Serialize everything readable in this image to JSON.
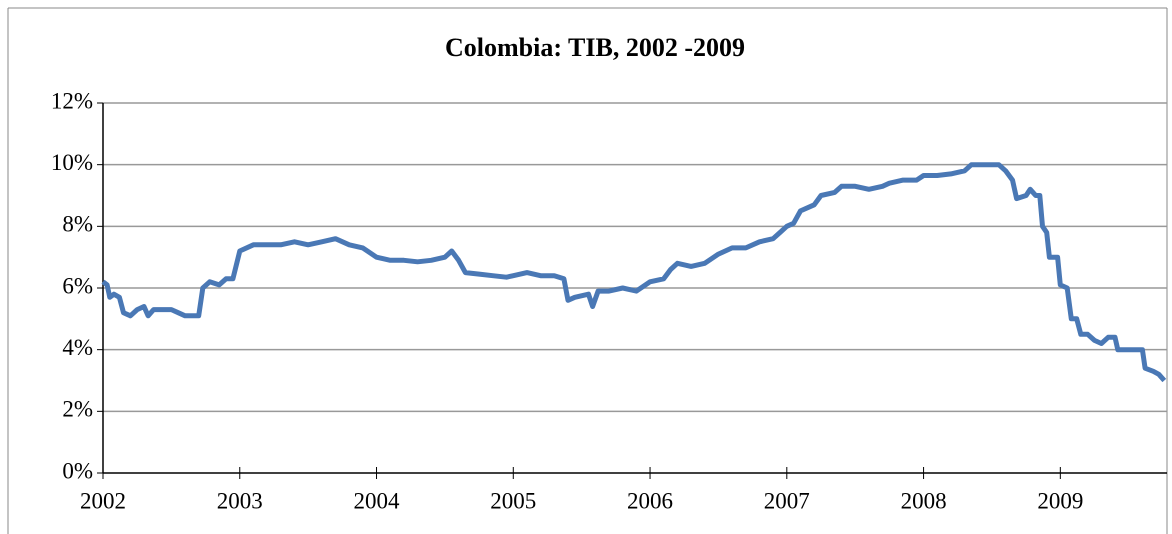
{
  "chart_data": {
    "type": "line",
    "title": "Colombia: TIB, 2002 -2009",
    "x": [
      2002.0,
      2002.03,
      2002.05,
      2002.08,
      2002.12,
      2002.15,
      2002.2,
      2002.25,
      2002.3,
      2002.33,
      2002.37,
      2002.45,
      2002.5,
      2002.55,
      2002.6,
      2002.65,
      2002.7,
      2002.73,
      2002.78,
      2002.85,
      2002.9,
      2002.95,
      2003.0,
      2003.1,
      2003.2,
      2003.3,
      2003.4,
      2003.5,
      2003.6,
      2003.7,
      2003.8,
      2003.9,
      2004.0,
      2004.1,
      2004.2,
      2004.3,
      2004.4,
      2004.5,
      2004.55,
      2004.6,
      2004.65,
      2004.75,
      2004.85,
      2004.95,
      2005.0,
      2005.1,
      2005.2,
      2005.3,
      2005.37,
      2005.4,
      2005.45,
      2005.55,
      2005.58,
      2005.62,
      2005.7,
      2005.8,
      2005.9,
      2006.0,
      2006.1,
      2006.15,
      2006.2,
      2006.3,
      2006.4,
      2006.5,
      2006.6,
      2006.7,
      2006.8,
      2006.9,
      2006.95,
      2007.0,
      2007.05,
      2007.1,
      2007.2,
      2007.25,
      2007.35,
      2007.4,
      2007.5,
      2007.6,
      2007.7,
      2007.75,
      2007.85,
      2007.95,
      2008.0,
      2008.1,
      2008.2,
      2008.3,
      2008.35,
      2008.45,
      2008.55,
      2008.6,
      2008.65,
      2008.68,
      2008.75,
      2008.78,
      2008.82,
      2008.85,
      2008.87,
      2008.9,
      2008.92,
      2008.98,
      2009.0,
      2009.05,
      2009.08,
      2009.12,
      2009.15,
      2009.2,
      2009.25,
      2009.3,
      2009.35,
      2009.4,
      2009.42,
      2009.5,
      2009.6,
      2009.62,
      2009.68,
      2009.72,
      2009.76
    ],
    "series": [
      {
        "name": "TIB",
        "color": "#4a78b5",
        "values": [
          6.2,
          6.1,
          5.7,
          5.8,
          5.7,
          5.2,
          5.1,
          5.3,
          5.4,
          5.1,
          5.3,
          5.3,
          5.3,
          5.2,
          5.1,
          5.1,
          5.1,
          6.0,
          6.2,
          6.1,
          6.3,
          6.3,
          7.2,
          7.4,
          7.4,
          7.4,
          7.5,
          7.4,
          7.5,
          7.6,
          7.4,
          7.3,
          7.0,
          6.9,
          6.9,
          6.85,
          6.9,
          7.0,
          7.2,
          6.9,
          6.5,
          6.45,
          6.4,
          6.35,
          6.4,
          6.5,
          6.4,
          6.4,
          6.3,
          5.6,
          5.7,
          5.8,
          5.4,
          5.9,
          5.9,
          6.0,
          5.9,
          6.2,
          6.3,
          6.6,
          6.8,
          6.7,
          6.8,
          7.1,
          7.3,
          7.3,
          7.5,
          7.6,
          7.8,
          8.0,
          8.1,
          8.5,
          8.7,
          9.0,
          9.1,
          9.3,
          9.3,
          9.2,
          9.3,
          9.4,
          9.5,
          9.5,
          9.65,
          9.65,
          9.7,
          9.8,
          10.0,
          10.0,
          10.0,
          9.8,
          9.5,
          8.9,
          9.0,
          9.2,
          9.0,
          9.0,
          8.0,
          7.8,
          7.0,
          7.0,
          6.1,
          6.0,
          5.0,
          5.0,
          4.5,
          4.5,
          4.3,
          4.2,
          4.4,
          4.4,
          4.0,
          4.0,
          4.0,
          3.4,
          3.3,
          3.2,
          3.0
        ]
      }
    ],
    "xlim": [
      2002,
      2009.78
    ],
    "xticks": [
      2002,
      2003,
      2004,
      2005,
      2006,
      2007,
      2008,
      2009
    ],
    "ylim": [
      0,
      12
    ],
    "yticks": [
      {
        "value": 0,
        "label": "0%"
      },
      {
        "value": 2,
        "label": "2%"
      },
      {
        "value": 4,
        "label": "4%"
      },
      {
        "value": 6,
        "label": "6%"
      },
      {
        "value": 8,
        "label": "8%"
      },
      {
        "value": 10,
        "label": "10%"
      },
      {
        "value": 12,
        "label": "12%"
      }
    ],
    "grid": true
  }
}
